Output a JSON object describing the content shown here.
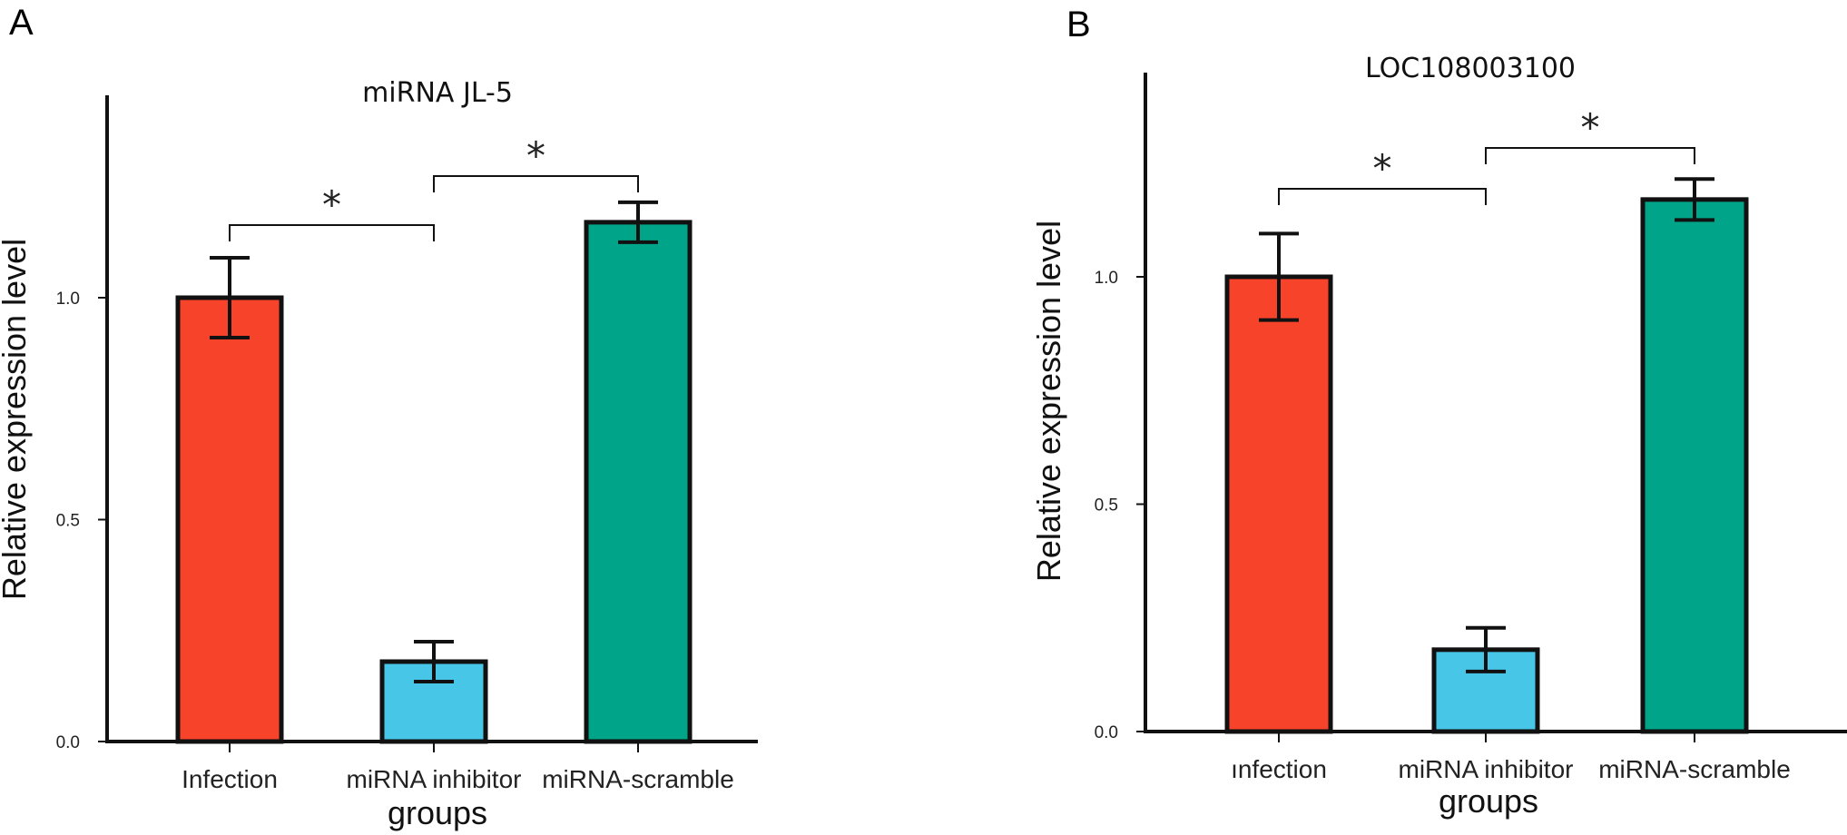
{
  "colors": {
    "infection": "#f6432a",
    "inhibitor": "#48c6e8",
    "scramble": "#00a488",
    "stroke": "#111111"
  },
  "chart_data": [
    {
      "type": "bar",
      "panel": "A",
      "title": "miRNA JL-5",
      "xlabel": "groups",
      "ylabel": "Relative expression level",
      "categories": [
        "Infection",
        "miRNA inhibitor",
        "miRNA-scramble"
      ],
      "values": [
        1.0,
        0.18,
        1.17
      ],
      "errors": [
        0.09,
        0.045,
        0.045
      ],
      "yticks": [
        "0.0",
        "0.5",
        "1.0"
      ],
      "ylim": [
        0,
        1.45
      ],
      "significance": [
        {
          "from": 0,
          "to": 1,
          "label": "*"
        },
        {
          "from": 1,
          "to": 2,
          "label": "*"
        }
      ]
    },
    {
      "type": "bar",
      "panel": "B",
      "title": "LOC108003100",
      "xlabel": "groups",
      "ylabel": "Relative expression level",
      "categories": [
        "ınfection",
        "miRNA inhibitor",
        "miRNA-scramble"
      ],
      "values": [
        1.0,
        0.18,
        1.17
      ],
      "errors": [
        0.095,
        0.048,
        0.045
      ],
      "yticks": [
        "0.0",
        "0.5",
        "1.0"
      ],
      "ylim": [
        0,
        1.45
      ],
      "significance": [
        {
          "from": 0,
          "to": 1,
          "label": "*"
        },
        {
          "from": 1,
          "to": 2,
          "label": "*"
        }
      ]
    }
  ]
}
